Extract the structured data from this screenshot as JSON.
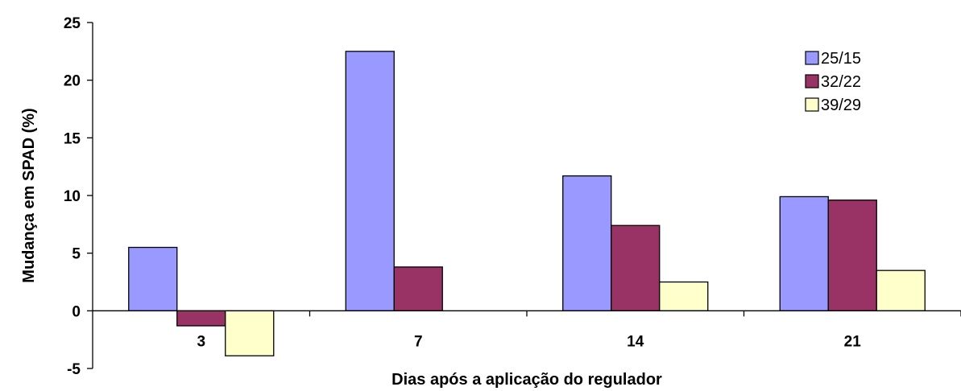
{
  "chart_data": {
    "type": "bar",
    "categories": [
      "3",
      "7",
      "14",
      "21"
    ],
    "series": [
      {
        "name": "25/15",
        "values": [
          5.5,
          22.5,
          11.7,
          9.9
        ],
        "color": "#9999FF"
      },
      {
        "name": "32/22",
        "values": [
          -1.3,
          3.8,
          7.4,
          9.6
        ],
        "color": "#993366"
      },
      {
        "name": "39/29",
        "values": [
          -3.9,
          0,
          2.5,
          3.5
        ],
        "color": "#FFFFCC"
      }
    ],
    "xlabel": "Dias após a aplicação do regulador",
    "ylabel": "Mudança em SPAD (%)",
    "ylim": [
      -5,
      25
    ],
    "yticks": [
      "-5",
      "0",
      "5",
      "10",
      "15",
      "20",
      "25"
    ],
    "grid": false,
    "legend": "top-right"
  }
}
